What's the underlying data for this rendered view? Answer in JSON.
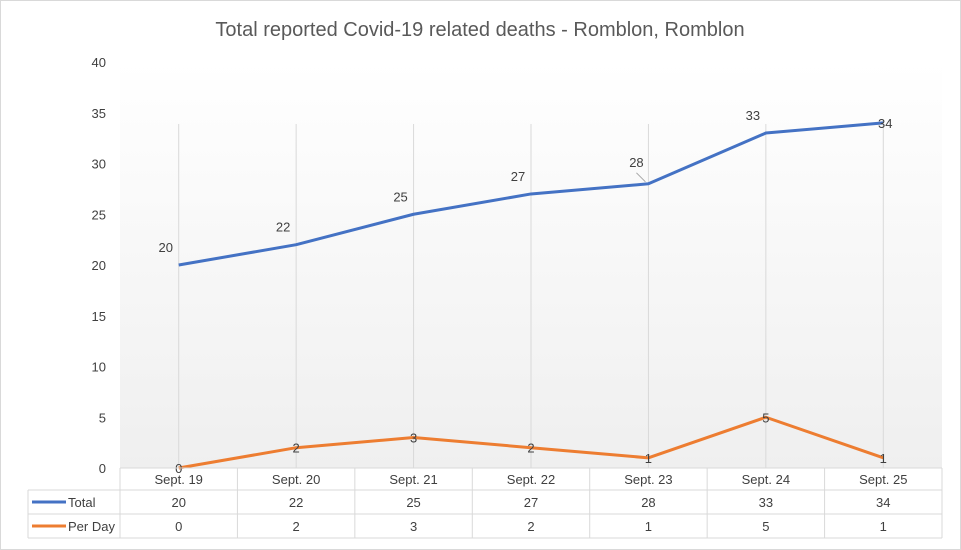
{
  "chart_data": {
    "type": "line",
    "title": "Total reported Covid-19 related deaths - Romblon, Romblon",
    "categories": [
      "Sept. 19",
      "Sept. 20",
      "Sept. 21",
      "Sept. 22",
      "Sept. 23",
      "Sept. 24",
      "Sept. 25"
    ],
    "series": [
      {
        "name": "Total",
        "color": "#4472c4",
        "values": [
          20,
          22,
          25,
          27,
          28,
          33,
          34
        ]
      },
      {
        "name": "Per Day",
        "color": "#ed7d31",
        "values": [
          0,
          2,
          3,
          2,
          1,
          5,
          1
        ]
      }
    ],
    "ylim": [
      0,
      40
    ],
    "yticks": [
      0,
      5,
      10,
      15,
      20,
      25,
      30,
      35,
      40
    ],
    "xlabel": "",
    "ylabel": "",
    "grid": "vertical gridlines",
    "data_labels": true,
    "legend": "data table with legend keys"
  }
}
